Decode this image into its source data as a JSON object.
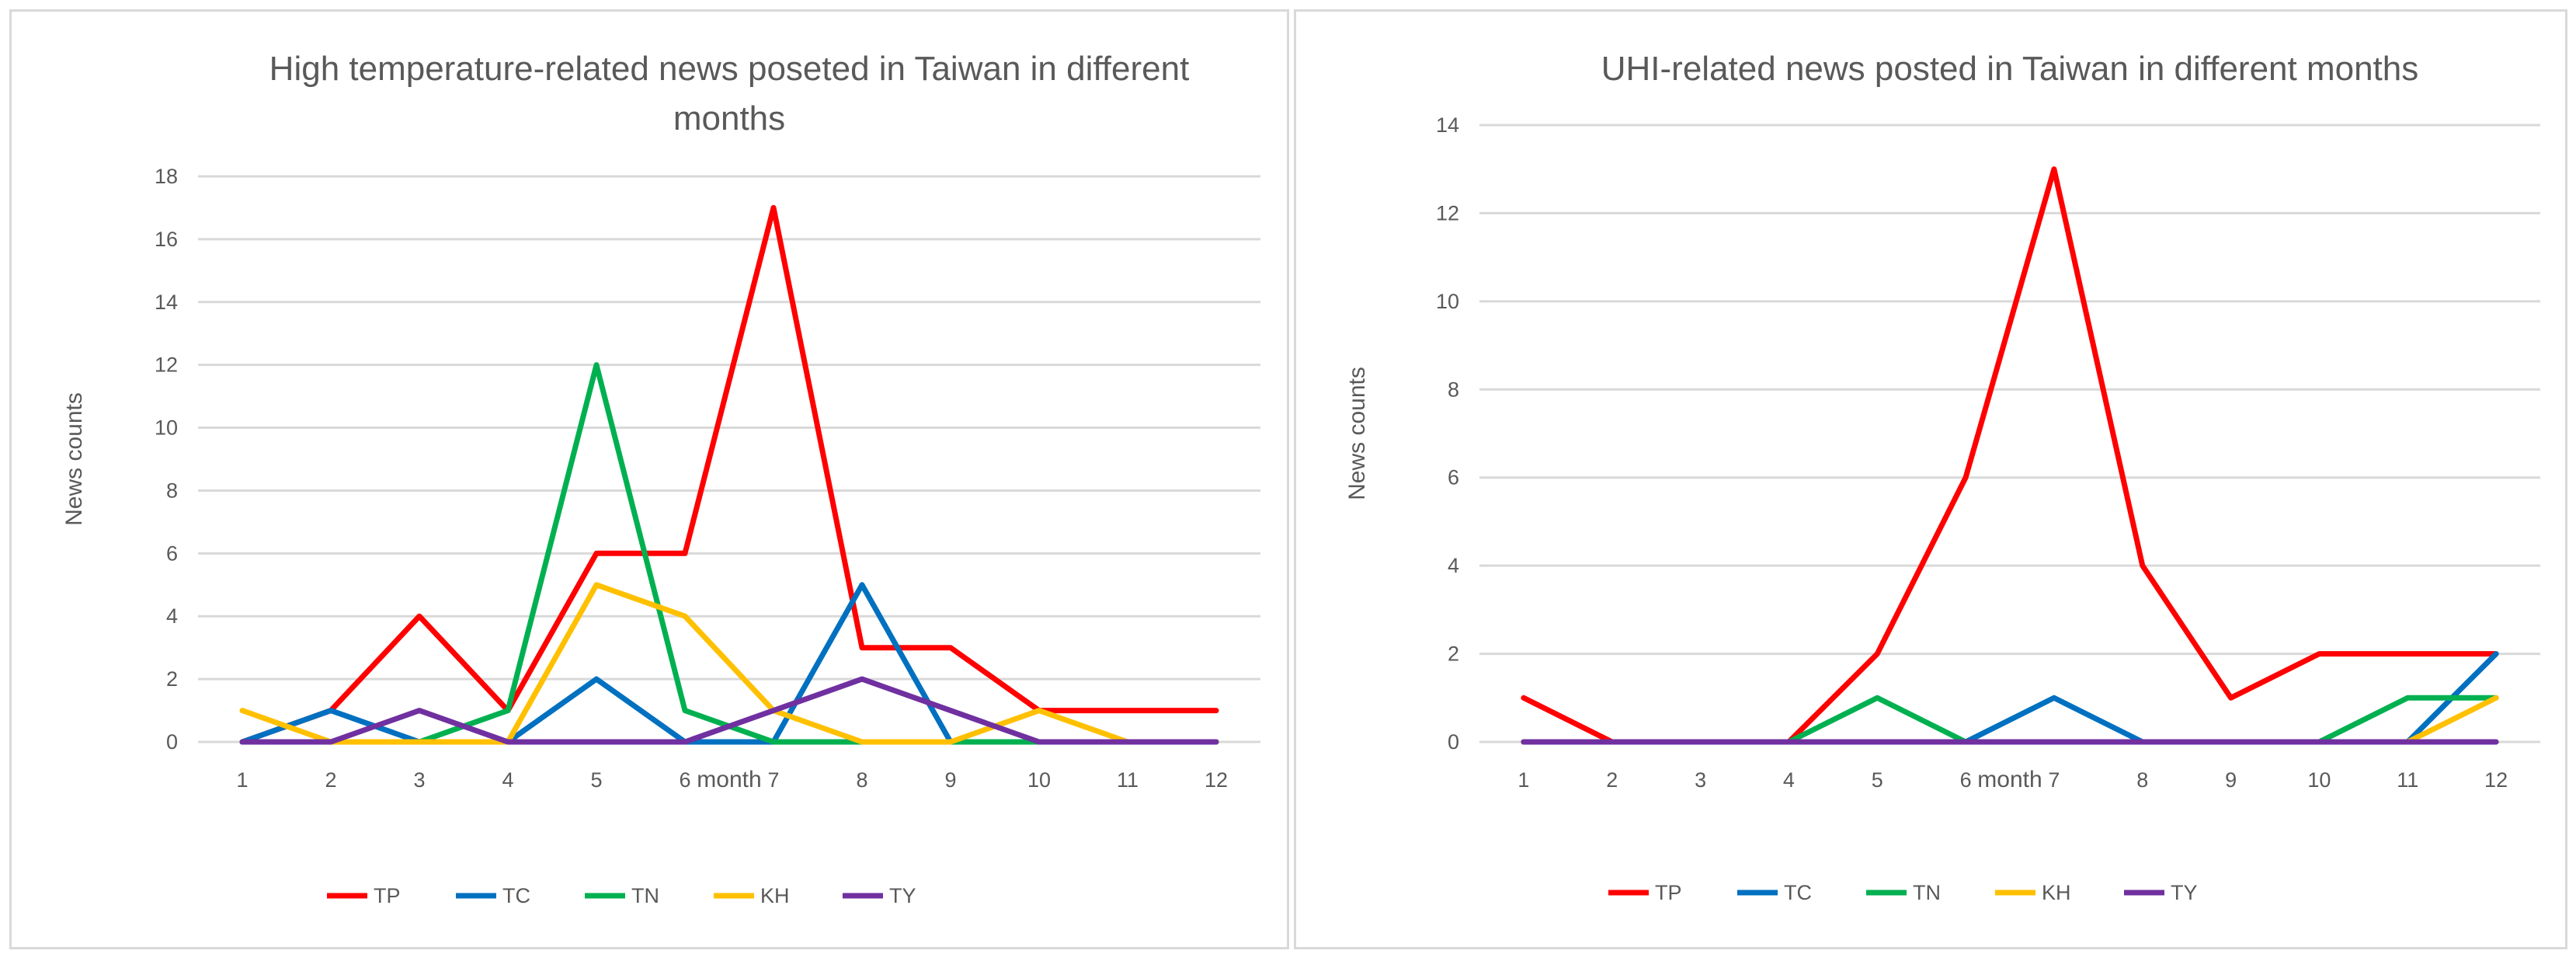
{
  "chart_data": [
    {
      "type": "line",
      "title": "High temperature-related news poseted in Taiwan in different months",
      "title_lines": [
        "High temperature-related news poseted in Taiwan in different",
        "months"
      ],
      "xlabel": "month",
      "ylabel": "News counts",
      "categories": [
        "1",
        "2",
        "3",
        "4",
        "5",
        "6",
        "7",
        "8",
        "9",
        "10",
        "11",
        "12"
      ],
      "ylim": [
        0,
        18
      ],
      "yticks": [
        0,
        2,
        4,
        6,
        8,
        10,
        12,
        14,
        16,
        18
      ],
      "grid": true,
      "legend_position": "bottom",
      "series": [
        {
          "name": "TP",
          "color": "#ff0000",
          "values": [
            0,
            1,
            4,
            1,
            6,
            6,
            17,
            3,
            3,
            1,
            1,
            1
          ]
        },
        {
          "name": "TC",
          "color": "#0070c0",
          "values": [
            0,
            1,
            0,
            0,
            2,
            0,
            0,
            5,
            0,
            0,
            0,
            0
          ]
        },
        {
          "name": "TN",
          "color": "#00b050",
          "values": [
            0,
            0,
            0,
            1,
            12,
            1,
            0,
            0,
            0,
            0,
            0,
            0
          ]
        },
        {
          "name": "KH",
          "color": "#ffc000",
          "values": [
            1,
            0,
            0,
            0,
            5,
            4,
            1,
            0,
            0,
            1,
            0,
            0
          ]
        },
        {
          "name": "TY",
          "color": "#7030a0",
          "values": [
            0,
            0,
            1,
            0,
            0,
            0,
            1,
            2,
            1,
            0,
            0,
            0
          ]
        }
      ]
    },
    {
      "type": "line",
      "title": "UHI-related news posted in Taiwan in different months",
      "title_lines": [
        "UHI-related news posted in Taiwan in different months"
      ],
      "xlabel": "month",
      "ylabel": "News counts",
      "categories": [
        "1",
        "2",
        "3",
        "4",
        "5",
        "6",
        "7",
        "8",
        "9",
        "10",
        "11",
        "12"
      ],
      "ylim": [
        0,
        14
      ],
      "yticks": [
        0,
        2,
        4,
        6,
        8,
        10,
        12,
        14
      ],
      "grid": true,
      "legend_position": "bottom",
      "series": [
        {
          "name": "TP",
          "color": "#ff0000",
          "values": [
            1,
            0,
            0,
            0,
            2,
            6,
            13,
            4,
            1,
            2,
            2,
            2
          ]
        },
        {
          "name": "TC",
          "color": "#0070c0",
          "values": [
            0,
            0,
            0,
            0,
            0,
            0,
            1,
            0,
            0,
            0,
            0,
            2
          ]
        },
        {
          "name": "TN",
          "color": "#00b050",
          "values": [
            0,
            0,
            0,
            0,
            1,
            0,
            0,
            0,
            0,
            0,
            1,
            1
          ]
        },
        {
          "name": "KH",
          "color": "#ffc000",
          "values": [
            0,
            0,
            0,
            0,
            0,
            0,
            0,
            0,
            0,
            0,
            0,
            1
          ]
        },
        {
          "name": "TY",
          "color": "#7030a0",
          "values": [
            0,
            0,
            0,
            0,
            0,
            0,
            0,
            0,
            0,
            0,
            0,
            0
          ]
        }
      ]
    }
  ]
}
